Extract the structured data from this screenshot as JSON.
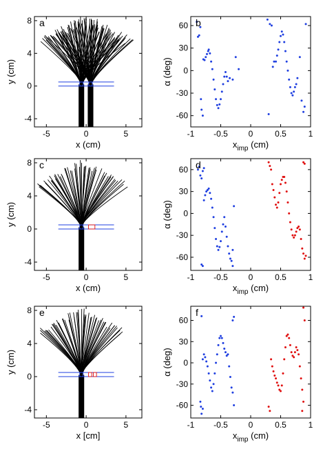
{
  "colors": {
    "blue": "#1f3fe0",
    "red": "#e01010",
    "black": "#000000"
  },
  "chart_data": [
    {
      "type": "line",
      "panel": "a",
      "letter": "a",
      "xlabel": "x (cm)",
      "ylabel": "y (cm)",
      "xlim": [
        -6.5,
        7
      ],
      "ylim": [
        -5,
        8.5
      ],
      "xticks": [
        -5,
        0,
        5
      ],
      "yticks": [
        -4,
        0,
        4,
        8
      ],
      "sources": [
        -0.6,
        0.55
      ],
      "fan_top": 8.2,
      "fan_spread": 5.2,
      "wall": {
        "y_top": 0.5,
        "y_bottom": 0.0,
        "x_left": -3.5,
        "x_right": 3.5
      },
      "red_boxes": []
    },
    {
      "type": "scatter",
      "panel": "b",
      "letter": "b",
      "xlabel": "x_imp (cm)",
      "xlabel_main": "x",
      "xlabel_sub": "imp",
      "xlabel_unit": " (cm)",
      "ylabel": "α (deg)",
      "xlim": [
        -1,
        1
      ],
      "ylim": [
        -75,
        72
      ],
      "xticks": [
        -1,
        -0.5,
        0,
        0.5,
        1
      ],
      "yticks": [
        -60,
        -30,
        0,
        30,
        60
      ],
      "series": [
        {
          "color": "blue",
          "points": [
            [
              -0.9,
              65
            ],
            [
              -0.88,
              45
            ],
            [
              -0.86,
              47
            ],
            [
              -0.84,
              58
            ],
            [
              -0.83,
              -38
            ],
            [
              -0.82,
              -52
            ],
            [
              -0.8,
              -60
            ],
            [
              -0.79,
              15
            ],
            [
              -0.77,
              14
            ],
            [
              -0.75,
              18
            ],
            [
              -0.73,
              22
            ],
            [
              -0.71,
              26
            ],
            [
              -0.7,
              28
            ],
            [
              -0.68,
              23
            ],
            [
              -0.66,
              12
            ],
            [
              -0.64,
              2
            ],
            [
              -0.62,
              -12
            ],
            [
              -0.6,
              -25
            ],
            [
              -0.58,
              -38
            ],
            [
              -0.56,
              -46
            ],
            [
              -0.54,
              -50
            ],
            [
              -0.52,
              -45
            ],
            [
              -0.5,
              -38
            ],
            [
              -0.48,
              -28
            ],
            [
              -0.46,
              -18
            ],
            [
              -0.44,
              -8
            ],
            [
              -0.42,
              -2
            ],
            [
              -0.4,
              -8
            ],
            [
              -0.38,
              -14
            ],
            [
              -0.35,
              -10
            ],
            [
              -0.3,
              -12
            ],
            [
              -0.25,
              18
            ],
            [
              -0.2,
              2
            ],
            [
              0.28,
              68
            ],
            [
              0.3,
              -58
            ],
            [
              0.32,
              62
            ],
            [
              0.35,
              60
            ],
            [
              0.37,
              5
            ],
            [
              0.39,
              12
            ],
            [
              0.42,
              12
            ],
            [
              0.44,
              20
            ],
            [
              0.46,
              28
            ],
            [
              0.48,
              38
            ],
            [
              0.5,
              46
            ],
            [
              0.52,
              52
            ],
            [
              0.54,
              48
            ],
            [
              0.56,
              38
            ],
            [
              0.58,
              26
            ],
            [
              0.6,
              12
            ],
            [
              0.62,
              0
            ],
            [
              0.64,
              -12
            ],
            [
              0.66,
              -22
            ],
            [
              0.68,
              -30
            ],
            [
              0.7,
              -33
            ],
            [
              0.72,
              -28
            ],
            [
              0.74,
              -22
            ],
            [
              0.76,
              -18
            ],
            [
              0.78,
              -10
            ],
            [
              0.82,
              18
            ],
            [
              0.85,
              -40
            ],
            [
              0.88,
              -55
            ],
            [
              0.9,
              -48
            ],
            [
              0.92,
              62
            ]
          ]
        }
      ]
    },
    {
      "type": "line",
      "panel": "c",
      "letter": "c",
      "xlabel": "x (cm)",
      "ylabel": "y (cm)",
      "xlim": [
        -6.5,
        7
      ],
      "ylim": [
        -5,
        8.5
      ],
      "xticks": [
        -5,
        0,
        5
      ],
      "yticks": [
        -4,
        0,
        4,
        8
      ],
      "sources": [
        -0.6
      ],
      "fan_top": 8.0,
      "fan_spread": 5.6,
      "wall": {
        "y_top": 0.5,
        "y_bottom": 0.0,
        "x_left": -3.5,
        "x_right": 3.5
      },
      "red_boxes": [
        [
          0.3,
          0.0,
          1.1,
          0.5
        ]
      ]
    },
    {
      "type": "scatter",
      "panel": "d",
      "letter": "d",
      "xlabel": "x_imp (cm)",
      "xlabel_main": "x",
      "xlabel_sub": "imp",
      "xlabel_unit": " (cm)",
      "ylabel": "α (deg)",
      "xlim": [
        -1,
        1
      ],
      "ylim": [
        -78,
        75
      ],
      "xticks": [
        -1,
        -0.5,
        0,
        0.5,
        1
      ],
      "yticks": [
        -60,
        -30,
        0,
        30,
        60
      ],
      "series": [
        {
          "color": "blue",
          "points": [
            [
              -0.88,
              60
            ],
            [
              -0.86,
              64
            ],
            [
              -0.84,
              52
            ],
            [
              -0.82,
              48
            ],
            [
              -0.8,
              58
            ],
            [
              -0.78,
              62
            ],
            [
              -0.78,
              18
            ],
            [
              -0.76,
              25
            ],
            [
              -0.74,
              30
            ],
            [
              -0.72,
              32
            ],
            [
              -0.7,
              34
            ],
            [
              -0.68,
              28
            ],
            [
              -0.66,
              20
            ],
            [
              -0.64,
              8
            ],
            [
              -0.62,
              -5
            ],
            [
              -0.6,
              -20
            ],
            [
              -0.58,
              -35
            ],
            [
              -0.56,
              -45
            ],
            [
              -0.54,
              -50
            ],
            [
              -0.52,
              -46
            ],
            [
              -0.5,
              -38
            ],
            [
              -0.48,
              -25
            ],
            [
              -0.46,
              -15
            ],
            [
              -0.44,
              -5
            ],
            [
              -0.42,
              -18
            ],
            [
              -0.4,
              -32
            ],
            [
              -0.38,
              -45
            ],
            [
              -0.36,
              -55
            ],
            [
              -0.34,
              -62
            ],
            [
              -0.32,
              -65
            ],
            [
              -0.3,
              -72
            ],
            [
              -0.82,
              -70
            ],
            [
              -0.8,
              -72
            ],
            [
              -0.28,
              10
            ],
            [
              -0.3,
              -50
            ]
          ]
        },
        {
          "color": "red",
          "points": [
            [
              0.3,
              70
            ],
            [
              0.32,
              65
            ],
            [
              0.34,
              60
            ],
            [
              0.36,
              40
            ],
            [
              0.38,
              32
            ],
            [
              0.4,
              22
            ],
            [
              0.42,
              12
            ],
            [
              0.44,
              8
            ],
            [
              0.46,
              15
            ],
            [
              0.48,
              28
            ],
            [
              0.5,
              40
            ],
            [
              0.52,
              46
            ],
            [
              0.54,
              50
            ],
            [
              0.56,
              50
            ],
            [
              0.58,
              42
            ],
            [
              0.6,
              30
            ],
            [
              0.62,
              15
            ],
            [
              0.64,
              0
            ],
            [
              0.66,
              -12
            ],
            [
              0.68,
              -22
            ],
            [
              0.7,
              -30
            ],
            [
              0.72,
              -33
            ],
            [
              0.74,
              -30
            ],
            [
              0.76,
              -25
            ],
            [
              0.78,
              -20
            ],
            [
              0.8,
              -18
            ],
            [
              0.82,
              -22
            ],
            [
              0.84,
              -35
            ],
            [
              0.86,
              -48
            ],
            [
              0.88,
              -55
            ],
            [
              0.9,
              -62
            ],
            [
              0.92,
              -58
            ],
            [
              0.88,
              70
            ],
            [
              0.9,
              68
            ]
          ]
        }
      ]
    },
    {
      "type": "line",
      "panel": "e",
      "letter": "e",
      "xlabel": "x [cm]",
      "ylabel": "y (cm)",
      "xlim": [
        -6.5,
        7
      ],
      "ylim": [
        -5,
        8.5
      ],
      "xticks": [
        -5,
        0,
        5
      ],
      "yticks": [
        -4,
        0,
        4,
        8
      ],
      "sources": [
        -0.6
      ],
      "fan_top": 8.0,
      "fan_spread": 5.4,
      "wall": {
        "y_top": 0.5,
        "y_bottom": 0.0,
        "x_left": -3.5,
        "x_right": 3.5
      },
      "red_boxes": [
        [
          0.3,
          0.0,
          0.7,
          0.5
        ],
        [
          0.9,
          0.0,
          1.3,
          0.5
        ]
      ]
    },
    {
      "type": "scatter",
      "panel": "f",
      "letter": "f",
      "xlabel": "x_imp (cm)",
      "xlabel_main": "x",
      "xlabel_sub": "imp",
      "xlabel_unit": " (cm)",
      "ylabel": "α (deg)",
      "xlim": [
        -1,
        1
      ],
      "ylim": [
        -78,
        80
      ],
      "xticks": [
        -1,
        -0.5,
        0,
        0.5,
        1
      ],
      "yticks": [
        -60,
        -30,
        0,
        30,
        60
      ],
      "series": [
        {
          "color": "blue",
          "points": [
            [
              -0.82,
              66
            ],
            [
              -0.84,
              -55
            ],
            [
              -0.83,
              -62
            ],
            [
              -0.82,
              -72
            ],
            [
              -0.8,
              -65
            ],
            [
              -0.8,
              5
            ],
            [
              -0.78,
              12
            ],
            [
              -0.76,
              8
            ],
            [
              -0.74,
              2
            ],
            [
              -0.72,
              -5
            ],
            [
              -0.7,
              -15
            ],
            [
              -0.68,
              -25
            ],
            [
              -0.66,
              -35
            ],
            [
              -0.64,
              -40
            ],
            [
              -0.62,
              -30
            ],
            [
              -0.6,
              -15
            ],
            [
              -0.58,
              0
            ],
            [
              -0.56,
              12
            ],
            [
              -0.54,
              25
            ],
            [
              -0.52,
              35
            ],
            [
              -0.5,
              38
            ],
            [
              -0.48,
              35
            ],
            [
              -0.46,
              28
            ],
            [
              -0.44,
              20
            ],
            [
              -0.42,
              15
            ],
            [
              -0.4,
              10
            ],
            [
              -0.38,
              12
            ],
            [
              -0.36,
              -5
            ],
            [
              -0.34,
              -20
            ],
            [
              -0.32,
              -35
            ],
            [
              -0.3,
              -42
            ],
            [
              -0.3,
              60
            ],
            [
              -0.28,
              65
            ],
            [
              -0.28,
              -60
            ]
          ]
        },
        {
          "color": "red",
          "points": [
            [
              0.3,
              -62
            ],
            [
              0.32,
              -68
            ],
            [
              0.34,
              5
            ],
            [
              0.36,
              -5
            ],
            [
              0.38,
              -12
            ],
            [
              0.4,
              -18
            ],
            [
              0.42,
              -22
            ],
            [
              0.44,
              -28
            ],
            [
              0.46,
              -32
            ],
            [
              0.48,
              -38
            ],
            [
              0.5,
              -40
            ],
            [
              0.52,
              -32
            ],
            [
              0.54,
              -15
            ],
            [
              0.56,
              5
            ],
            [
              0.58,
              22
            ],
            [
              0.6,
              38
            ],
            [
              0.62,
              40
            ],
            [
              0.64,
              35
            ],
            [
              0.66,
              25
            ],
            [
              0.68,
              15
            ],
            [
              0.7,
              10
            ],
            [
              0.72,
              8
            ],
            [
              0.74,
              15
            ],
            [
              0.76,
              22
            ],
            [
              0.78,
              18
            ],
            [
              0.8,
              12
            ],
            [
              0.82,
              -5
            ],
            [
              0.84,
              -22
            ],
            [
              0.86,
              -38
            ],
            [
              0.88,
              -55
            ],
            [
              0.88,
              78
            ],
            [
              0.9,
              60
            ],
            [
              0.86,
              -68
            ]
          ]
        }
      ]
    }
  ]
}
